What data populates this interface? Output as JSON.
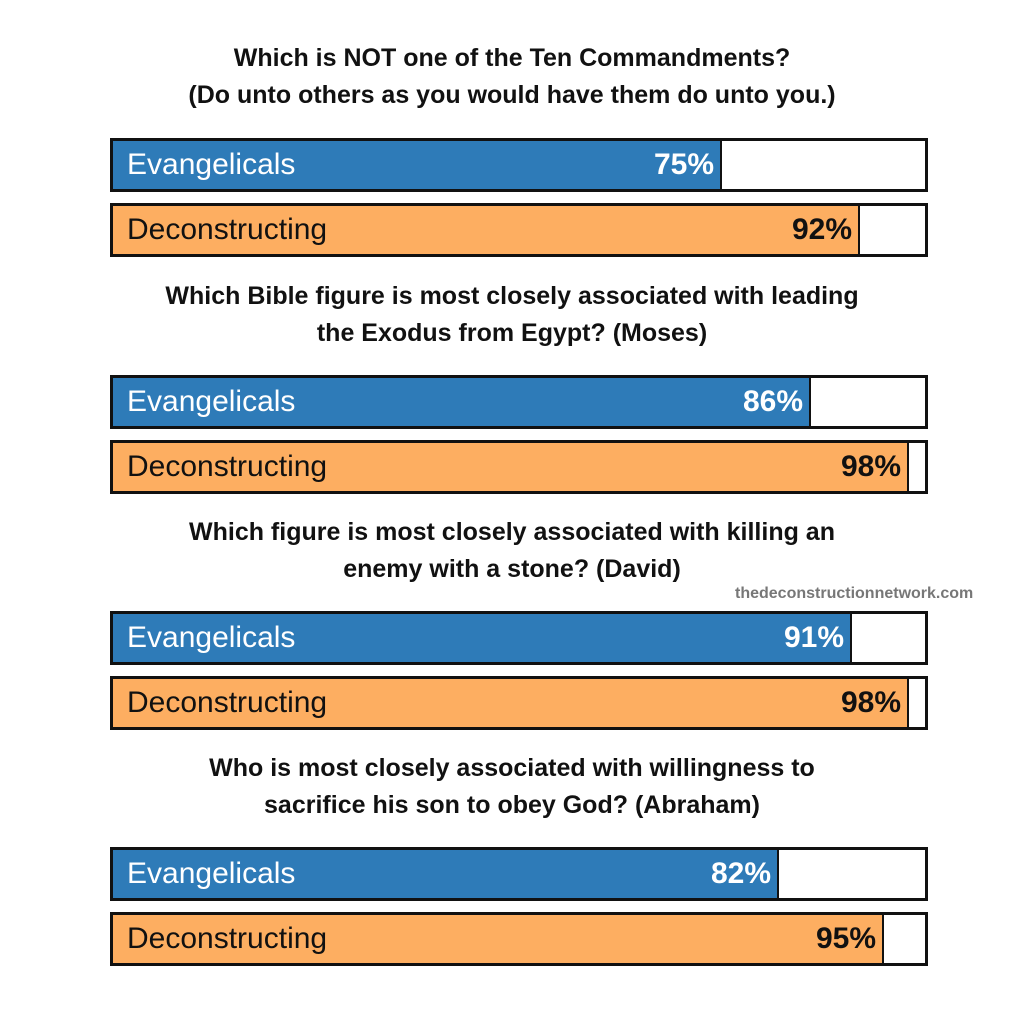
{
  "colors": {
    "evangelicals": "#2e7bb8",
    "deconstructing": "#fdae61",
    "border": "#111111"
  },
  "watermark": "thedeconstructionnetwork.com",
  "questions": [
    {
      "line1": "Which is NOT one of the Ten Commandments?",
      "line2": "(Do unto others as you would have them do unto you.)",
      "evangelicals": {
        "label": "Evangelicals",
        "value": 75,
        "display": "75%"
      },
      "deconstructing": {
        "label": "Deconstructing",
        "value": 92,
        "display": "92%"
      }
    },
    {
      "line1": "Which Bible figure is most closely associated with leading",
      "line2": "the Exodus from Egypt? (Moses)",
      "evangelicals": {
        "label": "Evangelicals",
        "value": 86,
        "display": "86%"
      },
      "deconstructing": {
        "label": "Deconstructing",
        "value": 98,
        "display": "98%"
      }
    },
    {
      "line1": "Which figure is most closely associated with killing an",
      "line2": "enemy with a stone? (David)",
      "evangelicals": {
        "label": "Evangelicals",
        "value": 91,
        "display": "91%"
      },
      "deconstructing": {
        "label": "Deconstructing",
        "value": 98,
        "display": "98%"
      }
    },
    {
      "line1": "Who is most closely associated with willingness to",
      "line2": "sacrifice his son to obey God? (Abraham)",
      "evangelicals": {
        "label": "Evangelicals",
        "value": 82,
        "display": "82%"
      },
      "deconstructing": {
        "label": "Deconstructing",
        "value": 95,
        "display": "95%"
      }
    }
  ],
  "chart_data": {
    "type": "bar",
    "orientation": "horizontal",
    "title": "",
    "categories": [
      "Which is NOT one of the Ten Commandments? (Do unto others as you would have them do unto you.)",
      "Which Bible figure is most closely associated with leading the Exodus from Egypt? (Moses)",
      "Which figure is most closely associated with killing an enemy with a stone? (David)",
      "Who is most closely associated with willingness to sacrifice his son to obey God? (Abraham)"
    ],
    "series": [
      {
        "name": "Evangelicals",
        "color": "#2e7bb8",
        "values": [
          75,
          86,
          91,
          82
        ]
      },
      {
        "name": "Deconstructing",
        "color": "#fdae61",
        "values": [
          92,
          98,
          98,
          95
        ]
      }
    ],
    "unit": "%",
    "xlim": [
      0,
      100
    ],
    "grid": false,
    "annotations": [
      "thedeconstructionnetwork.com"
    ]
  }
}
